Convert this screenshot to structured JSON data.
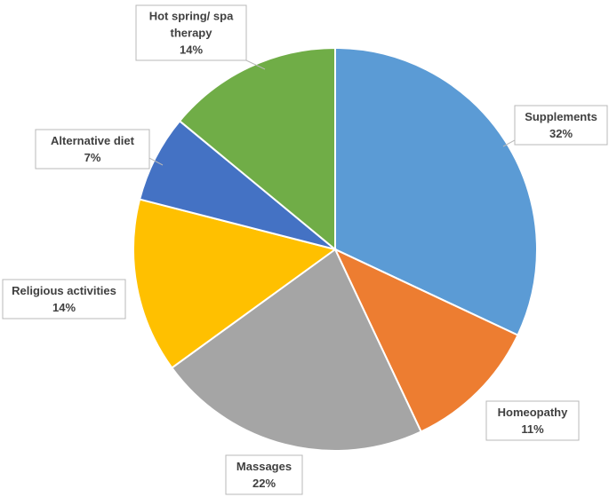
{
  "chart_data": {
    "type": "pie",
    "title": "",
    "start_angle_deg": 0,
    "direction": "clockwise",
    "legend": "none",
    "slices": [
      {
        "label": "Supplements",
        "value": 32,
        "value_label": "32%",
        "color": "#5B9BD5"
      },
      {
        "label": "Homeopathy",
        "value": 11,
        "value_label": "11%",
        "color": "#ED7D31"
      },
      {
        "label": "Massages",
        "value": 22,
        "value_label": "22%",
        "color": "#A5A5A5"
      },
      {
        "label": "Religious activities",
        "value": 14,
        "value_label": "14%",
        "color": "#FFC000"
      },
      {
        "label": "Alternative diet",
        "value": 7,
        "value_label": "7%",
        "color": "#4472C4"
      },
      {
        "label": "Hot spring/ spa therapy",
        "value": 14,
        "value_label": "14%",
        "color": "#70AD47"
      }
    ]
  }
}
